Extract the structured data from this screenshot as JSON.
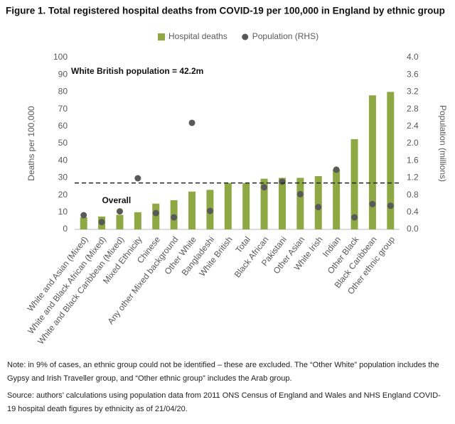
{
  "chart_data": {
    "type": "bar",
    "title": "Figure 1. Total registered hospital deaths from COVID-19 per 100,000 in England by ethnic group",
    "y_label": "Deaths per 100,000",
    "y2_label": "Population (millions)",
    "categories": [
      "White and Asian (Mixed)",
      "White and Black African (Mixed)",
      "White and Black Caribbean (Mixed)",
      "Mixed Ethnicity",
      "Chinese",
      "Any other Mixed background",
      "Other White",
      "Bangladeshi",
      "White British",
      "Total",
      "Black African",
      "Pakistani",
      "Other Asian",
      "White Irish",
      "Indian",
      "Other Black",
      "Black Caribbean",
      "Other ethnic group"
    ],
    "series": [
      {
        "name": "Hospital deaths",
        "type": "bar",
        "color": "#8ea843",
        "values": [
          7,
          7.5,
          8.5,
          10,
          15,
          17,
          22,
          23,
          27,
          27,
          29.5,
          30,
          30,
          31,
          35,
          52.5,
          78,
          80
        ]
      },
      {
        "name": "Population (RHS)",
        "type": "scatter",
        "axis": "y2",
        "color": "#595959",
        "values": [
          0.33,
          0.17,
          0.42,
          1.19,
          0.38,
          0.28,
          2.48,
          0.43,
          null,
          null,
          0.98,
          1.11,
          0.82,
          0.52,
          1.39,
          0.28,
          0.59,
          0.55
        ]
      }
    ],
    "reference_line": {
      "value": 27,
      "label": "Overall"
    },
    "annotation": "White British population = 42.2m",
    "ylim": [
      0,
      100
    ],
    "yticks": [
      0,
      10,
      20,
      30,
      40,
      50,
      60,
      70,
      80,
      90,
      100
    ],
    "y2lim": [
      0,
      4
    ],
    "y2ticks": [
      {
        "value": 0,
        "label": "0.0"
      },
      0.4,
      0.8,
      1.2,
      1.6,
      {
        "value": 2,
        "label": "2.0"
      },
      2.4,
      2.8,
      3.2,
      3.6,
      {
        "value": 4,
        "label": "4.0"
      }
    ],
    "legend": "top",
    "grid": false
  },
  "notes": [
    "Note: in 9% of cases, an ethnic group could not be identified – these are excluded. The “Other White” population includes the Gypsy and Irish Traveller group, and “Other ethnic group” includes the Arab group.",
    "Source: authors’ calculations using population data from 2011 ONS Census of England and Wales and NHS England COVID-19 hospital death figures by ethnicity as of 21/04/20."
  ]
}
